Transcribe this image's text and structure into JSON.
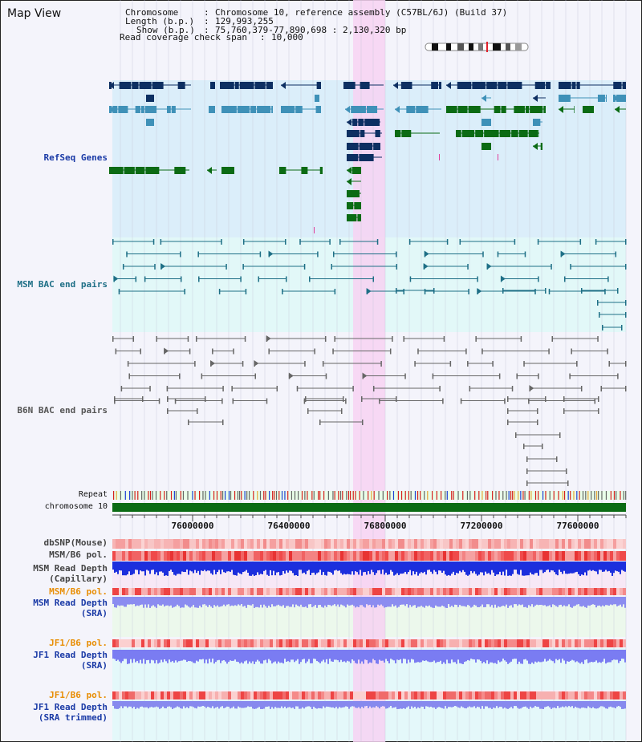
{
  "page": {
    "title": "Map View"
  },
  "info": {
    "chromosome_key": "Chromosome",
    "chromosome_val": "Chromosome 10, reference assembly (C57BL/6J) (Build 37)",
    "length_key": "Length (b.p.)",
    "length_val": "129,993,255",
    "show_key": "Show (b.p.)",
    "show_val": "75,760,379-77,890,698 : 2,130,320 bp",
    "span_key": "Read coverage check span",
    "span_val": "10,000",
    "sep": ":"
  },
  "tracks": {
    "refseq": "RefSeq Genes",
    "msm_bac": "MSM BAC end pairs",
    "b6n_bac": "B6N BAC end pairs",
    "repeat": "Repeat",
    "chromosome": "chromosome 10",
    "dbsnp": "dbSNP(Mouse)",
    "msm_b6_pol_1": "MSM/B6 pol.",
    "msm_read_depth_cap_1": "MSM Read Depth",
    "msm_read_depth_cap_2": "(Capillary)",
    "msm_b6_pol_2": "MSM/B6 pol.",
    "msm_read_depth_sra_1": "MSM Read Depth",
    "msm_read_depth_sra_2": "(SRA)",
    "jf1_b6_pol_1": "JF1/B6 pol.",
    "jf1_read_depth_sra_1": "JF1 Read Depth",
    "jf1_read_depth_sra_2": "(SRA)",
    "jf1_b6_pol_2": "JF1/B6 pol.",
    "jf1_read_depth_trim_1": "JF1 Read Depth",
    "jf1_read_depth_trim_2": "(SRA trimmed)"
  },
  "axis": {
    "ticks": [
      "76000000",
      "76400000",
      "76800000",
      "77200000",
      "77600000"
    ]
  },
  "colors": {
    "refseq_bg": "#dbeefa",
    "msm_bg": "#e2f8f8",
    "highlight": "#f7d2f2",
    "dark_gene": "#0d2f62",
    "mid_gene": "#3f91b8",
    "green_gene": "#0b6b14",
    "bac_teal": "#1e6f86",
    "bac_grey": "#666666",
    "label_blue": "#1a3aa6",
    "label_orange": "#e88e05",
    "label_grey": "#444444"
  }
}
